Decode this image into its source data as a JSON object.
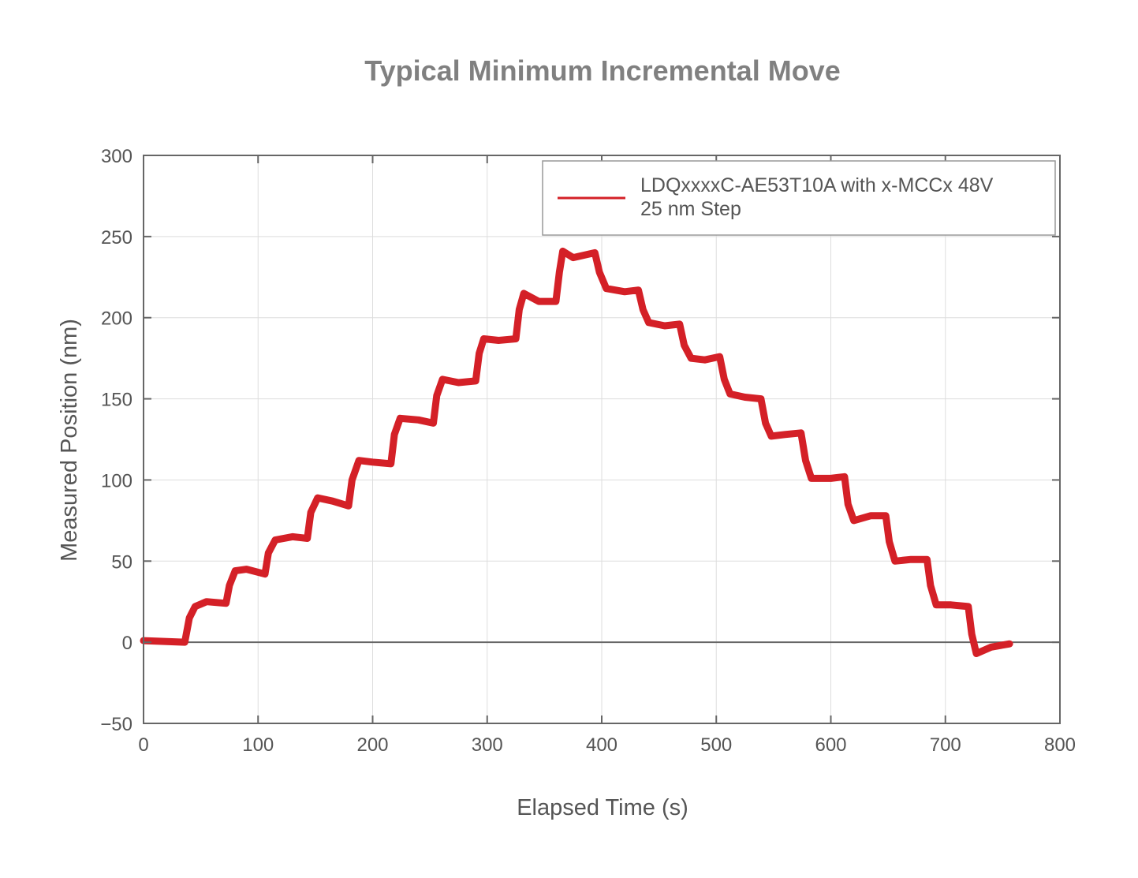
{
  "chart_data": {
    "type": "line",
    "title": "Typical Minimum Incremental Move",
    "xlabel": "Elapsed Time (s)",
    "ylabel": "Measured Position (nm)",
    "xlim": [
      0,
      800
    ],
    "ylim": [
      -50,
      300
    ],
    "xticks": [
      0,
      100,
      200,
      300,
      400,
      500,
      600,
      700,
      800
    ],
    "yticks": [
      -50,
      0,
      50,
      100,
      150,
      200,
      250,
      300
    ],
    "ytick_labels": [
      "−50",
      "0",
      "50",
      "100",
      "150",
      "200",
      "250",
      "300"
    ],
    "grid": true,
    "legend_position": "top-right",
    "legend_lines": [
      "LDQxxxxC-AE53T10A with x-MCCx 48V",
      "25 nm Step"
    ],
    "series": [
      {
        "name": "LDQxxxxC-AE53T10A with x-MCCx 48V 25 nm Step",
        "color": "#d42027",
        "x": [
          0,
          36,
          40,
          45,
          55,
          72,
          75,
          80,
          90,
          106,
          109,
          115,
          130,
          143,
          146,
          152,
          165,
          179,
          182,
          188,
          200,
          216,
          219,
          224,
          240,
          253,
          256,
          261,
          275,
          290,
          293,
          297,
          310,
          325,
          328,
          332,
          345,
          360,
          363,
          366,
          375,
          394,
          398,
          404,
          420,
          432,
          436,
          441,
          455,
          468,
          472,
          478,
          490,
          503,
          507,
          512,
          525,
          539,
          543,
          548,
          560,
          574,
          578,
          583,
          600,
          612,
          615,
          620,
          635,
          648,
          651,
          656,
          670,
          684,
          687,
          692,
          705,
          720,
          723,
          727,
          740,
          756
        ],
        "y": [
          1,
          0,
          15,
          22,
          25,
          24,
          35,
          44,
          45,
          42,
          55,
          63,
          65,
          64,
          80,
          89,
          87,
          84,
          100,
          112,
          111,
          110,
          128,
          138,
          137,
          135,
          152,
          162,
          160,
          161,
          178,
          187,
          186,
          187,
          205,
          215,
          210,
          210,
          228,
          241,
          237,
          240,
          228,
          218,
          216,
          217,
          205,
          197,
          195,
          196,
          183,
          175,
          174,
          176,
          162,
          153,
          151,
          150,
          135,
          127,
          128,
          129,
          112,
          101,
          101,
          102,
          85,
          75,
          78,
          78,
          62,
          50,
          51,
          51,
          35,
          23,
          23,
          22,
          5,
          -7,
          -3,
          -1
        ]
      }
    ]
  }
}
